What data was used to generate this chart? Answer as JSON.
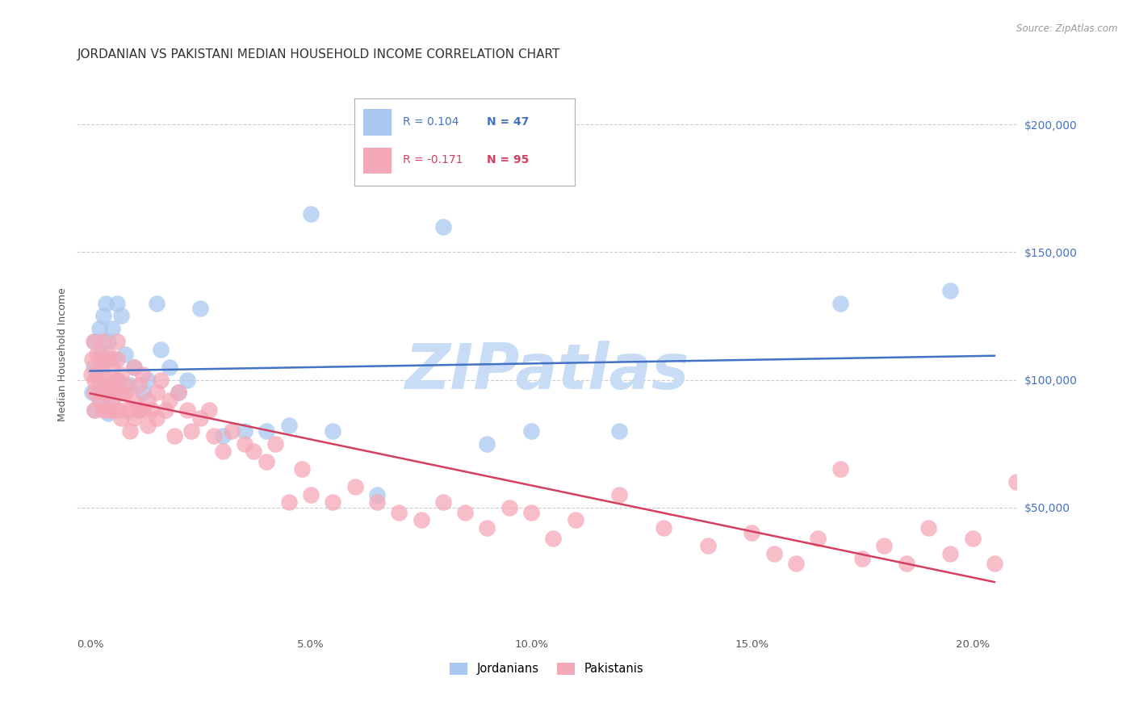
{
  "title": "JORDANIAN VS PAKISTANI MEDIAN HOUSEHOLD INCOME CORRELATION CHART",
  "source": "Source: ZipAtlas.com",
  "ylabel": "Median Household Income",
  "xlabel_ticks": [
    "0.0%",
    "5.0%",
    "10.0%",
    "15.0%",
    "20.0%"
  ],
  "xlabel_vals": [
    0.0,
    0.05,
    0.1,
    0.15,
    0.2
  ],
  "yright_labels": [
    "$50,000",
    "$100,000",
    "$150,000",
    "$200,000"
  ],
  "yright_vals": [
    50000,
    100000,
    150000,
    200000
  ],
  "xlim": [
    -0.003,
    0.21
  ],
  "ylim": [
    0,
    220000
  ],
  "jordan_color": "#a8c8f0",
  "jordan_line_color": "#4472c4",
  "pak_color": "#f5a8b8",
  "pak_line_color": "#d44060",
  "watermark": "ZIPatlas",
  "watermark_color": "#c8ddf5",
  "title_fontsize": 11,
  "jordan_x": [
    0.0005,
    0.0008,
    0.001,
    0.001,
    0.0015,
    0.002,
    0.002,
    0.0025,
    0.003,
    0.003,
    0.003,
    0.0035,
    0.004,
    0.004,
    0.004,
    0.005,
    0.005,
    0.005,
    0.006,
    0.006,
    0.007,
    0.007,
    0.008,
    0.009,
    0.01,
    0.011,
    0.012,
    0.013,
    0.015,
    0.016,
    0.018,
    0.02,
    0.022,
    0.025,
    0.03,
    0.035,
    0.04,
    0.045,
    0.05,
    0.055,
    0.065,
    0.08,
    0.09,
    0.1,
    0.12,
    0.17,
    0.195
  ],
  "jordan_y": [
    95000,
    105000,
    88000,
    115000,
    102000,
    120000,
    93000,
    110000,
    108000,
    125000,
    98000,
    130000,
    115000,
    95000,
    87000,
    108000,
    92000,
    120000,
    130000,
    100000,
    125000,
    95000,
    110000,
    98000,
    105000,
    88000,
    95000,
    100000,
    130000,
    112000,
    105000,
    95000,
    100000,
    128000,
    78000,
    80000,
    80000,
    82000,
    165000,
    80000,
    55000,
    160000,
    75000,
    80000,
    80000,
    130000,
    135000
  ],
  "pak_x": [
    0.0003,
    0.0005,
    0.0008,
    0.001,
    0.001,
    0.001,
    0.0015,
    0.002,
    0.002,
    0.002,
    0.0025,
    0.003,
    0.003,
    0.003,
    0.003,
    0.0035,
    0.004,
    0.004,
    0.004,
    0.004,
    0.005,
    0.005,
    0.005,
    0.005,
    0.006,
    0.006,
    0.006,
    0.006,
    0.007,
    0.007,
    0.007,
    0.008,
    0.008,
    0.008,
    0.009,
    0.009,
    0.01,
    0.01,
    0.01,
    0.011,
    0.011,
    0.012,
    0.012,
    0.013,
    0.013,
    0.014,
    0.015,
    0.015,
    0.016,
    0.017,
    0.018,
    0.019,
    0.02,
    0.022,
    0.023,
    0.025,
    0.027,
    0.028,
    0.03,
    0.032,
    0.035,
    0.037,
    0.04,
    0.042,
    0.045,
    0.048,
    0.05,
    0.055,
    0.06,
    0.065,
    0.07,
    0.075,
    0.08,
    0.085,
    0.09,
    0.095,
    0.1,
    0.105,
    0.11,
    0.12,
    0.13,
    0.14,
    0.15,
    0.155,
    0.16,
    0.165,
    0.17,
    0.175,
    0.18,
    0.185,
    0.19,
    0.195,
    0.2,
    0.205,
    0.21
  ],
  "pak_y": [
    102000,
    108000,
    115000,
    95000,
    100000,
    88000,
    110000,
    105000,
    92000,
    98000,
    108000,
    115000,
    102000,
    95000,
    88000,
    100000,
    110000,
    95000,
    88000,
    108000,
    105000,
    92000,
    98000,
    88000,
    108000,
    100000,
    88000,
    115000,
    102000,
    95000,
    85000,
    98000,
    88000,
    95000,
    88000,
    80000,
    92000,
    85000,
    105000,
    98000,
    88000,
    102000,
    88000,
    92000,
    82000,
    88000,
    95000,
    85000,
    100000,
    88000,
    92000,
    78000,
    95000,
    88000,
    80000,
    85000,
    88000,
    78000,
    72000,
    80000,
    75000,
    72000,
    68000,
    75000,
    52000,
    65000,
    55000,
    52000,
    58000,
    52000,
    48000,
    45000,
    52000,
    48000,
    42000,
    50000,
    48000,
    38000,
    45000,
    55000,
    42000,
    35000,
    40000,
    32000,
    28000,
    38000,
    65000,
    30000,
    35000,
    28000,
    42000,
    32000,
    38000,
    28000,
    60000
  ]
}
